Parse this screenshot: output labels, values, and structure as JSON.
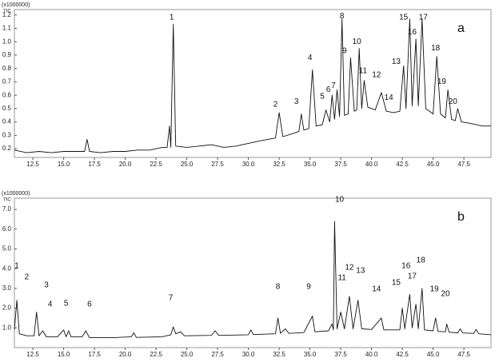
{
  "chart_data": [
    {
      "type": "line",
      "y_unit": "(x1000000)",
      "y_label": "TIC",
      "panel_label": "a",
      "color": "#111111",
      "xlim": [
        11.0,
        49.7
      ],
      "ylim": [
        0.135,
        1.24
      ],
      "xticks": [
        12.5,
        {
          "value": 15,
          "label": "15.0"
        },
        17.5,
        {
          "value": 20,
          "label": "20.0"
        },
        22.5,
        {
          "value": 25,
          "label": "25.0"
        },
        27.5,
        {
          "value": 30,
          "label": "30.0"
        },
        32.5,
        {
          "value": 35,
          "label": "35.0"
        },
        37.5,
        {
          "value": 40,
          "label": "40.0"
        },
        42.5,
        {
          "value": 45,
          "label": "45.0"
        },
        47.5
      ],
      "yticks": [
        0.2,
        0.3,
        0.4,
        0.5,
        0.6,
        0.7,
        0.8,
        0.9,
        {
          "value": 1,
          "label": "1.0"
        },
        1.1,
        1.2
      ],
      "x": [
        11.0,
        12.0,
        13.0,
        14.0,
        15.0,
        16.0,
        16.7,
        16.9,
        17.1,
        18.0,
        19.0,
        20.0,
        21.0,
        22.0,
        23.0,
        23.4,
        23.6,
        23.7,
        23.9,
        24.1,
        25.0,
        26.0,
        27.0,
        28.0,
        29.0,
        30.0,
        31.0,
        32.2,
        32.5,
        32.8,
        33.5,
        34.1,
        34.3,
        34.5,
        34.9,
        35.2,
        35.5,
        36.0,
        36.3,
        36.6,
        36.8,
        37.0,
        37.2,
        37.4,
        37.6,
        37.8,
        38.1,
        38.3,
        38.6,
        38.8,
        39.0,
        39.2,
        39.4,
        39.7,
        40.3,
        40.8,
        41.2,
        41.8,
        42.3,
        42.6,
        42.8,
        43.1,
        43.3,
        43.6,
        43.8,
        44.1,
        44.4,
        45.0,
        45.3,
        45.6,
        46.0,
        46.2,
        46.5,
        46.8,
        47.0,
        47.3,
        48.0,
        49.0,
        49.7
      ],
      "values": [
        0.19,
        0.17,
        0.18,
        0.17,
        0.18,
        0.18,
        0.18,
        0.27,
        0.18,
        0.17,
        0.18,
        0.18,
        0.19,
        0.19,
        0.21,
        0.21,
        0.37,
        0.21,
        1.13,
        0.22,
        0.21,
        0.22,
        0.23,
        0.21,
        0.22,
        0.24,
        0.26,
        0.28,
        0.47,
        0.29,
        0.31,
        0.33,
        0.46,
        0.34,
        0.35,
        0.79,
        0.37,
        0.38,
        0.49,
        0.4,
        0.6,
        0.42,
        0.64,
        0.44,
        1.17,
        0.45,
        0.46,
        0.88,
        0.48,
        0.49,
        0.95,
        0.5,
        0.71,
        0.51,
        0.49,
        0.62,
        0.48,
        0.47,
        0.48,
        0.82,
        0.5,
        1.17,
        0.52,
        1.02,
        0.52,
        1.17,
        0.5,
        0.46,
        0.89,
        0.46,
        0.43,
        0.64,
        0.42,
        0.41,
        0.5,
        0.4,
        0.39,
        0.37,
        0.37
      ],
      "annotations": [
        {
          "text": "1",
          "x": 23.77,
          "y": 1.18
        },
        {
          "text": "2",
          "x": 32.2,
          "y": 0.53
        },
        {
          "text": "3",
          "x": 33.9,
          "y": 0.55
        },
        {
          "text": "4",
          "x": 35.0,
          "y": 0.88
        },
        {
          "text": "5",
          "x": 36.0,
          "y": 0.59
        },
        {
          "text": "6",
          "x": 36.5,
          "y": 0.64
        },
        {
          "text": "7",
          "x": 36.9,
          "y": 0.67
        },
        {
          "text": "8",
          "x": 37.6,
          "y": 1.19
        },
        {
          "text": "9",
          "x": 37.8,
          "y": 0.93
        },
        {
          "text": "10",
          "x": 38.8,
          "y": 1.0
        },
        {
          "text": "11",
          "x": 39.3,
          "y": 0.78
        },
        {
          "text": "12",
          "x": 40.4,
          "y": 0.75
        },
        {
          "text": "13",
          "x": 42.0,
          "y": 0.85
        },
        {
          "text": "14",
          "x": 41.4,
          "y": 0.58
        },
        {
          "text": "15",
          "x": 42.6,
          "y": 1.18
        },
        {
          "text": "16",
          "x": 43.3,
          "y": 1.07
        },
        {
          "text": "17",
          "x": 44.2,
          "y": 1.18
        },
        {
          "text": "18",
          "x": 45.2,
          "y": 0.95
        },
        {
          "text": "19",
          "x": 45.7,
          "y": 0.7
        },
        {
          "text": "20",
          "x": 46.6,
          "y": 0.55
        }
      ]
    },
    {
      "type": "line",
      "y_unit": "(x1000000)",
      "y_label": "TIC",
      "panel_label": "b",
      "color": "#111111",
      "xlim": [
        11.0,
        49.7
      ],
      "ylim": [
        0.0,
        7.57
      ],
      "xticks": [
        12.5,
        {
          "value": 15,
          "label": "15.0"
        },
        17.5,
        {
          "value": 20,
          "label": "20.0"
        },
        22.5,
        {
          "value": 25,
          "label": "25.0"
        },
        27.5,
        {
          "value": 30,
          "label": "30.0"
        },
        32.5,
        {
          "value": 35,
          "label": "35.0"
        },
        37.5,
        {
          "value": 40,
          "label": "40.0"
        },
        42.5,
        {
          "value": 45,
          "label": "45.0"
        },
        47.5
      ],
      "yticks": [
        {
          "value": 1,
          "label": "1.0"
        },
        {
          "value": 2,
          "label": "2.0"
        },
        {
          "value": 3,
          "label": "3.0"
        },
        {
          "value": 4,
          "label": "4.0"
        },
        {
          "value": 5,
          "label": "5.0"
        },
        {
          "value": 6,
          "label": "6.0"
        },
        {
          "value": 7,
          "label": "7.0"
        }
      ],
      "x": [
        11.0,
        11.2,
        11.4,
        12.0,
        12.6,
        12.8,
        13.0,
        13.3,
        13.6,
        14.5,
        15.0,
        15.2,
        15.4,
        15.6,
        16.5,
        16.8,
        17.1,
        19.0,
        20.5,
        20.7,
        20.9,
        23.0,
        23.7,
        23.9,
        24.1,
        24.5,
        24.8,
        27.0,
        27.3,
        27.6,
        30.0,
        30.2,
        30.4,
        32.2,
        32.4,
        32.6,
        33.0,
        33.3,
        34.5,
        35.2,
        35.4,
        36.5,
        36.8,
        36.9,
        37.0,
        37.2,
        37.5,
        37.8,
        38.2,
        38.5,
        38.9,
        39.2,
        40.0,
        40.8,
        41.0,
        42.3,
        42.5,
        42.7,
        43.1,
        43.3,
        43.6,
        43.8,
        44.1,
        44.3,
        45.0,
        45.2,
        45.4,
        46.0,
        46.1,
        46.3,
        47.0,
        47.2,
        47.4,
        48.3,
        48.5,
        48.7,
        49.7
      ],
      "values": [
        0.9,
        2.4,
        0.7,
        0.6,
        0.6,
        1.8,
        0.6,
        0.85,
        0.55,
        0.55,
        0.9,
        0.55,
        0.85,
        0.55,
        0.55,
        0.85,
        0.5,
        0.5,
        0.55,
        0.75,
        0.52,
        0.55,
        0.65,
        1.05,
        0.7,
        0.8,
        0.6,
        0.62,
        0.85,
        0.62,
        0.65,
        0.9,
        0.66,
        0.7,
        1.5,
        0.72,
        0.95,
        0.72,
        0.76,
        1.6,
        0.8,
        0.85,
        1.2,
        0.9,
        6.4,
        0.95,
        1.8,
        0.95,
        2.6,
        0.95,
        2.4,
        0.95,
        0.92,
        1.5,
        0.9,
        0.9,
        2.0,
        0.95,
        2.7,
        1.0,
        2.2,
        0.95,
        3.0,
        0.9,
        0.85,
        1.5,
        0.82,
        0.8,
        1.2,
        0.78,
        0.75,
        0.95,
        0.74,
        0.72,
        0.92,
        0.7,
        0.65
      ],
      "annotations": [
        {
          "text": "1",
          "x": 11.2,
          "y": 4.13
        },
        {
          "text": "2",
          "x": 12.0,
          "y": 3.56
        },
        {
          "text": "3",
          "x": 13.6,
          "y": 3.16
        },
        {
          "text": "4",
          "x": 13.9,
          "y": 2.19
        },
        {
          "text": "5",
          "x": 15.2,
          "y": 2.23
        },
        {
          "text": "6",
          "x": 17.1,
          "y": 2.19
        },
        {
          "text": "7",
          "x": 23.7,
          "y": 2.51
        },
        {
          "text": "8",
          "x": 32.4,
          "y": 3.08
        },
        {
          "text": "9",
          "x": 34.9,
          "y": 3.08
        },
        {
          "text": "10",
          "x": 37.4,
          "y": 7.49
        },
        {
          "text": "11",
          "x": 37.6,
          "y": 3.52
        },
        {
          "text": "12",
          "x": 38.2,
          "y": 4.05
        },
        {
          "text": "13",
          "x": 39.1,
          "y": 3.89
        },
        {
          "text": "14",
          "x": 40.4,
          "y": 2.96
        },
        {
          "text": "15",
          "x": 42.0,
          "y": 3.28
        },
        {
          "text": "16",
          "x": 42.8,
          "y": 4.13
        },
        {
          "text": "17",
          "x": 43.3,
          "y": 3.6
        },
        {
          "text": "18",
          "x": 44.0,
          "y": 4.41
        },
        {
          "text": "19",
          "x": 45.1,
          "y": 2.96
        },
        {
          "text": "20",
          "x": 46.0,
          "y": 2.71
        }
      ]
    }
  ]
}
